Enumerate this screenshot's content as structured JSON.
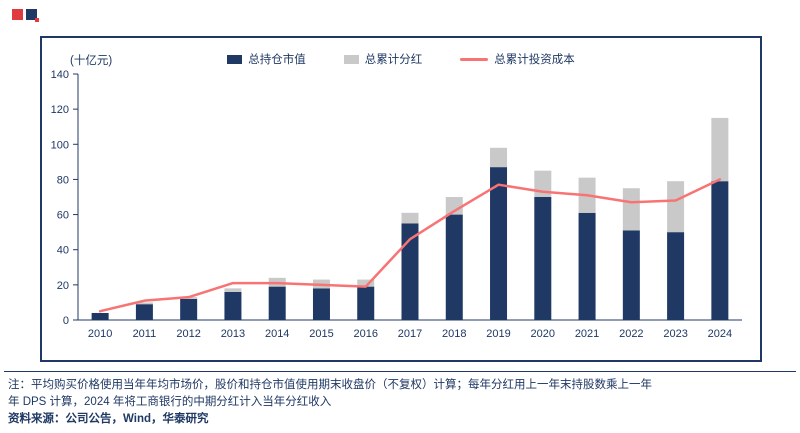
{
  "logo": {
    "name": "huatai-brand-mark"
  },
  "chart_data": {
    "type": "bar",
    "subtype": "stacked-bar-with-line",
    "title": "",
    "unit_label": "(十亿元)",
    "categories": [
      "2010",
      "2011",
      "2012",
      "2013",
      "2014",
      "2015",
      "2016",
      "2017",
      "2018",
      "2019",
      "2020",
      "2021",
      "2022",
      "2023",
      "2024"
    ],
    "series": [
      {
        "name": "总持仓市值",
        "type": "bar",
        "stack": true,
        "values": [
          4,
          9,
          12,
          16,
          19,
          18,
          19,
          55,
          60,
          87,
          70,
          61,
          51,
          50,
          79
        ]
      },
      {
        "name": "总累计分红",
        "type": "bar",
        "stack": true,
        "values": [
          0,
          1,
          1,
          2,
          5,
          5,
          4,
          6,
          10,
          11,
          15,
          20,
          24,
          29,
          36
        ]
      },
      {
        "name": "总累计投资成本",
        "type": "line",
        "values": [
          5,
          11,
          13,
          21,
          21,
          20,
          19,
          46,
          62,
          77,
          73,
          71,
          67,
          68,
          80
        ]
      }
    ],
    "xlabel": "",
    "ylabel": "",
    "ylim": [
      0,
      140
    ],
    "ytick_step": 20,
    "grid": false,
    "legend_position": "top-center",
    "colors": {
      "market_value": "#1F3864",
      "dividend": "#C9C9C9",
      "cost": "#F87474",
      "axis": "#1F3864",
      "text": "#1F3864",
      "frame_border": "#1F3864"
    }
  },
  "notes": {
    "line1": "注：平均购买价格使用当年年均市场价，股价和持仓市值使用期末收盘价（不复权）计算；每年分红用上一年末持股数乘上一年",
    "line2": "年 DPS 计算，2024 年将工商银行的中期分红计入当年分红收入",
    "source": "资料来源：公司公告，Wind，华泰研究"
  }
}
